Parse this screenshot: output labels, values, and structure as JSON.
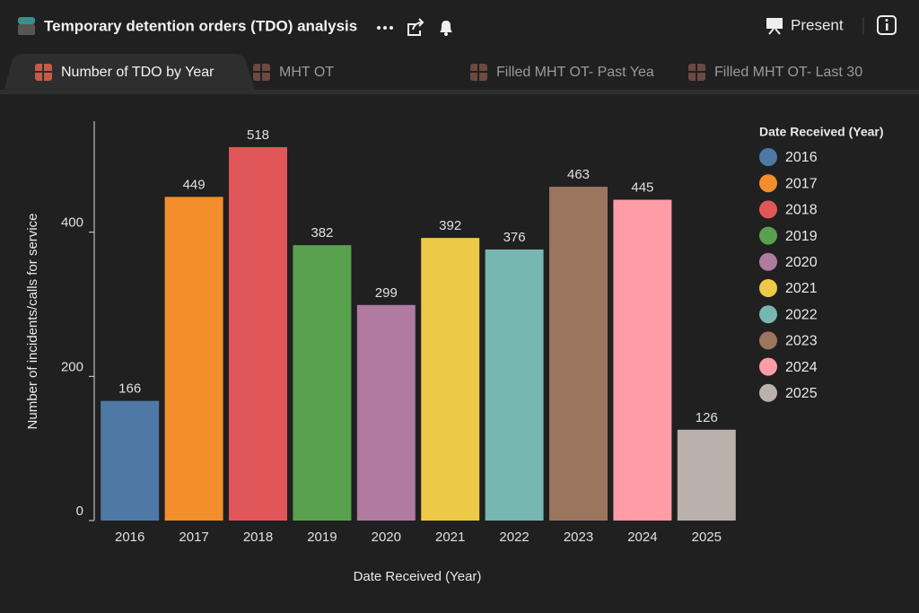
{
  "header": {
    "title": "Temporary detention orders (TDO) analysis",
    "present": "Present"
  },
  "tabs": [
    "Number of TDO by Year",
    "MHT OT",
    "Filled MHT OT- Past Yea",
    "Filled MHT OT- Last 30"
  ],
  "chart_data": {
    "type": "bar",
    "x_label": "Date Received (Year)",
    "y_label": "Number of incidents/calls for service",
    "legend_title": "Date Received (Year)",
    "categories": [
      "2016",
      "2017",
      "2018",
      "2019",
      "2020",
      "2021",
      "2022",
      "2023",
      "2024",
      "2025"
    ],
    "values": [
      166,
      449,
      518,
      382,
      299,
      392,
      376,
      463,
      445,
      126
    ],
    "colors": [
      "#4e79a7",
      "#f28e2b",
      "#e15759",
      "#59a14f",
      "#b07aa1",
      "#edc948",
      "#76b7b2",
      "#9c755f",
      "#ff9da7",
      "#bab0ac"
    ],
    "ylim": [
      0,
      554
    ],
    "yticks": [
      0,
      200,
      400
    ],
    "legend": "right"
  }
}
